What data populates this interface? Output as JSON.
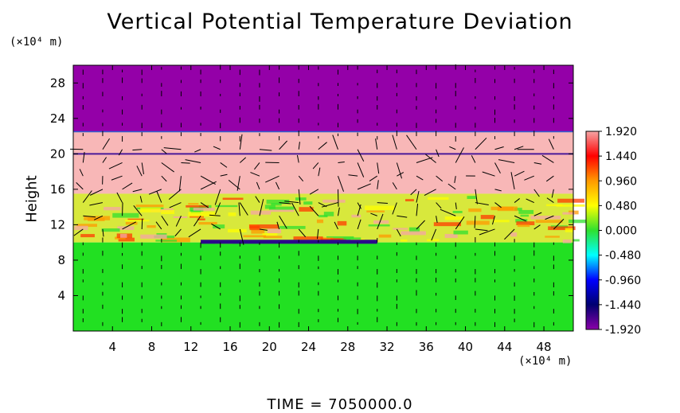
{
  "chart_data": {
    "type": "heatmap",
    "title": "Vertical Potential Temperature Deviation",
    "ylabel": "Height",
    "x_unit": "(×10⁴ m)",
    "y_unit": "(×10⁴ m)",
    "xlim": [
      0,
      51
    ],
    "ylim": [
      0,
      30
    ],
    "x_ticks": [
      4,
      8,
      12,
      16,
      20,
      24,
      28,
      32,
      36,
      40,
      44,
      48
    ],
    "y_ticks": [
      4,
      8,
      12,
      16,
      20,
      24,
      28
    ],
    "colorbar": {
      "min": -1.92,
      "max": 1.92,
      "labels": [
        "1.920",
        "1.440",
        "0.960",
        "0.480",
        "0.000",
        "-0.480",
        "-0.960",
        "-1.440",
        "-1.920"
      ],
      "colors": [
        "#f5a5a5",
        "#ff0000",
        "#ff9a00",
        "#ffff00",
        "#2fe02f",
        "#00ffff",
        "#0000ff",
        "#000070",
        "#8a00a8"
      ]
    },
    "layers": [
      {
        "name": "upper",
        "y_from": 22.5,
        "y_to": 30,
        "color": "#9400a8"
      },
      {
        "name": "upper-pink",
        "y_from": 15.5,
        "y_to": 22.5,
        "color": "#f8b7b7"
      },
      {
        "name": "turbulent",
        "y_from": 10,
        "y_to": 15.5,
        "color": "#d8e83c"
      },
      {
        "name": "lower",
        "y_from": 0,
        "y_to": 10,
        "color": "#22e022"
      }
    ],
    "time_label": "TIME = 7050000.0",
    "vectors": "wind field arrows overlaid"
  }
}
